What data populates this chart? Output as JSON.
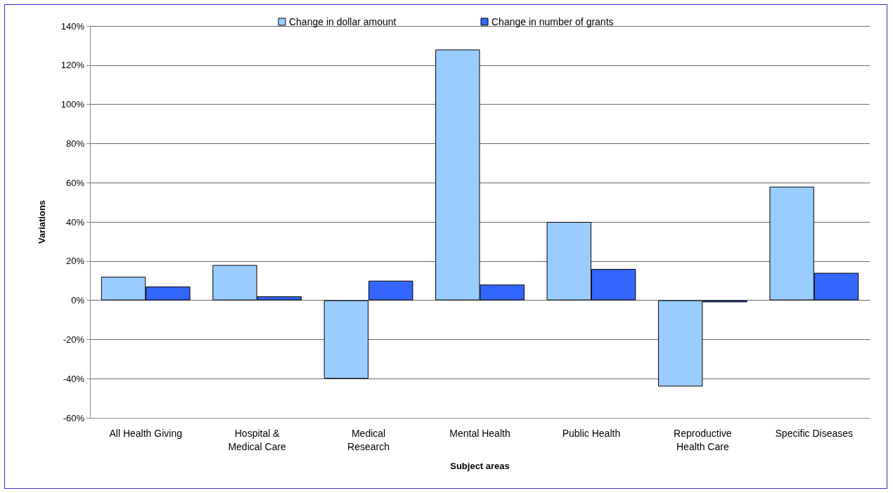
{
  "chart_data": {
    "type": "bar",
    "xlabel": "Subject areas",
    "ylabel": "Variations",
    "categories": [
      "All Health Giving",
      "Hospital &\nMedical Care",
      "Medical\nResearch",
      "Mental Health",
      "Public Health",
      "Reproductive\nHealth Care",
      "Specific Diseases"
    ],
    "series": [
      {
        "name": "Change in dollar amount",
        "color": "#99ccff",
        "values": [
          12,
          18,
          -40,
          128,
          40,
          -44,
          58
        ]
      },
      {
        "name": "Change in number of grants",
        "color": "#3366ff",
        "values": [
          7,
          2,
          10,
          8,
          16,
          -1,
          14
        ]
      }
    ],
    "ylim": [
      -60,
      140
    ],
    "yticks": [
      {
        "value": -60,
        "label": "-60%"
      },
      {
        "value": -40,
        "label": "-40%"
      },
      {
        "value": -20,
        "label": "-20%"
      },
      {
        "value": 0,
        "label": "0%"
      },
      {
        "value": 20,
        "label": "20%"
      },
      {
        "value": 40,
        "label": "40%"
      },
      {
        "value": 60,
        "label": "60%"
      },
      {
        "value": 80,
        "label": "80%"
      },
      {
        "value": 100,
        "label": "100%"
      },
      {
        "value": 120,
        "label": "120%"
      },
      {
        "value": 140,
        "label": "140%"
      }
    ],
    "grid": "y",
    "legend": "top"
  }
}
